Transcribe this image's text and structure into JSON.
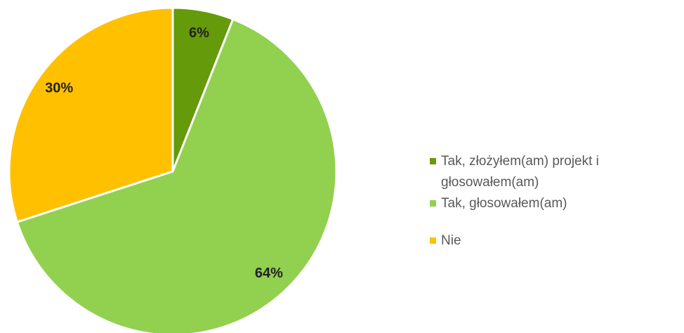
{
  "chart_data": {
    "type": "pie",
    "categories": [
      "Tak, złożyłem(am) projekt i głosowałem(am)",
      "Tak, głosowałem(am)",
      "Nie"
    ],
    "values": [
      6,
      64,
      30
    ],
    "value_labels": [
      "6%",
      "64%",
      "30%"
    ],
    "colors": [
      "#659a0a",
      "#92d050",
      "#ffc000"
    ]
  }
}
